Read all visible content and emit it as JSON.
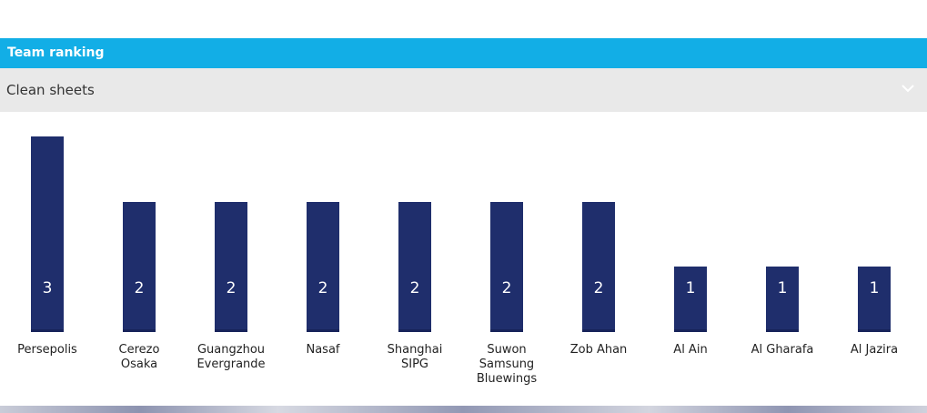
{
  "chart_data": {
    "type": "bar",
    "title": "Team ranking",
    "subtitle": "Clean sheets",
    "categories": [
      "Persepolis",
      "Cerezo Osaka",
      "Guangzhou Evergrande",
      "Nasaf",
      "Shanghai SIPG",
      "Suwon Samsung Bluewings",
      "Zob Ahan",
      "Al Ain",
      "Al Gharafa",
      "Al Jazira"
    ],
    "values": [
      3,
      2,
      2,
      2,
      2,
      2,
      2,
      1,
      1,
      1
    ],
    "color": "#1f2e6c"
  }
}
